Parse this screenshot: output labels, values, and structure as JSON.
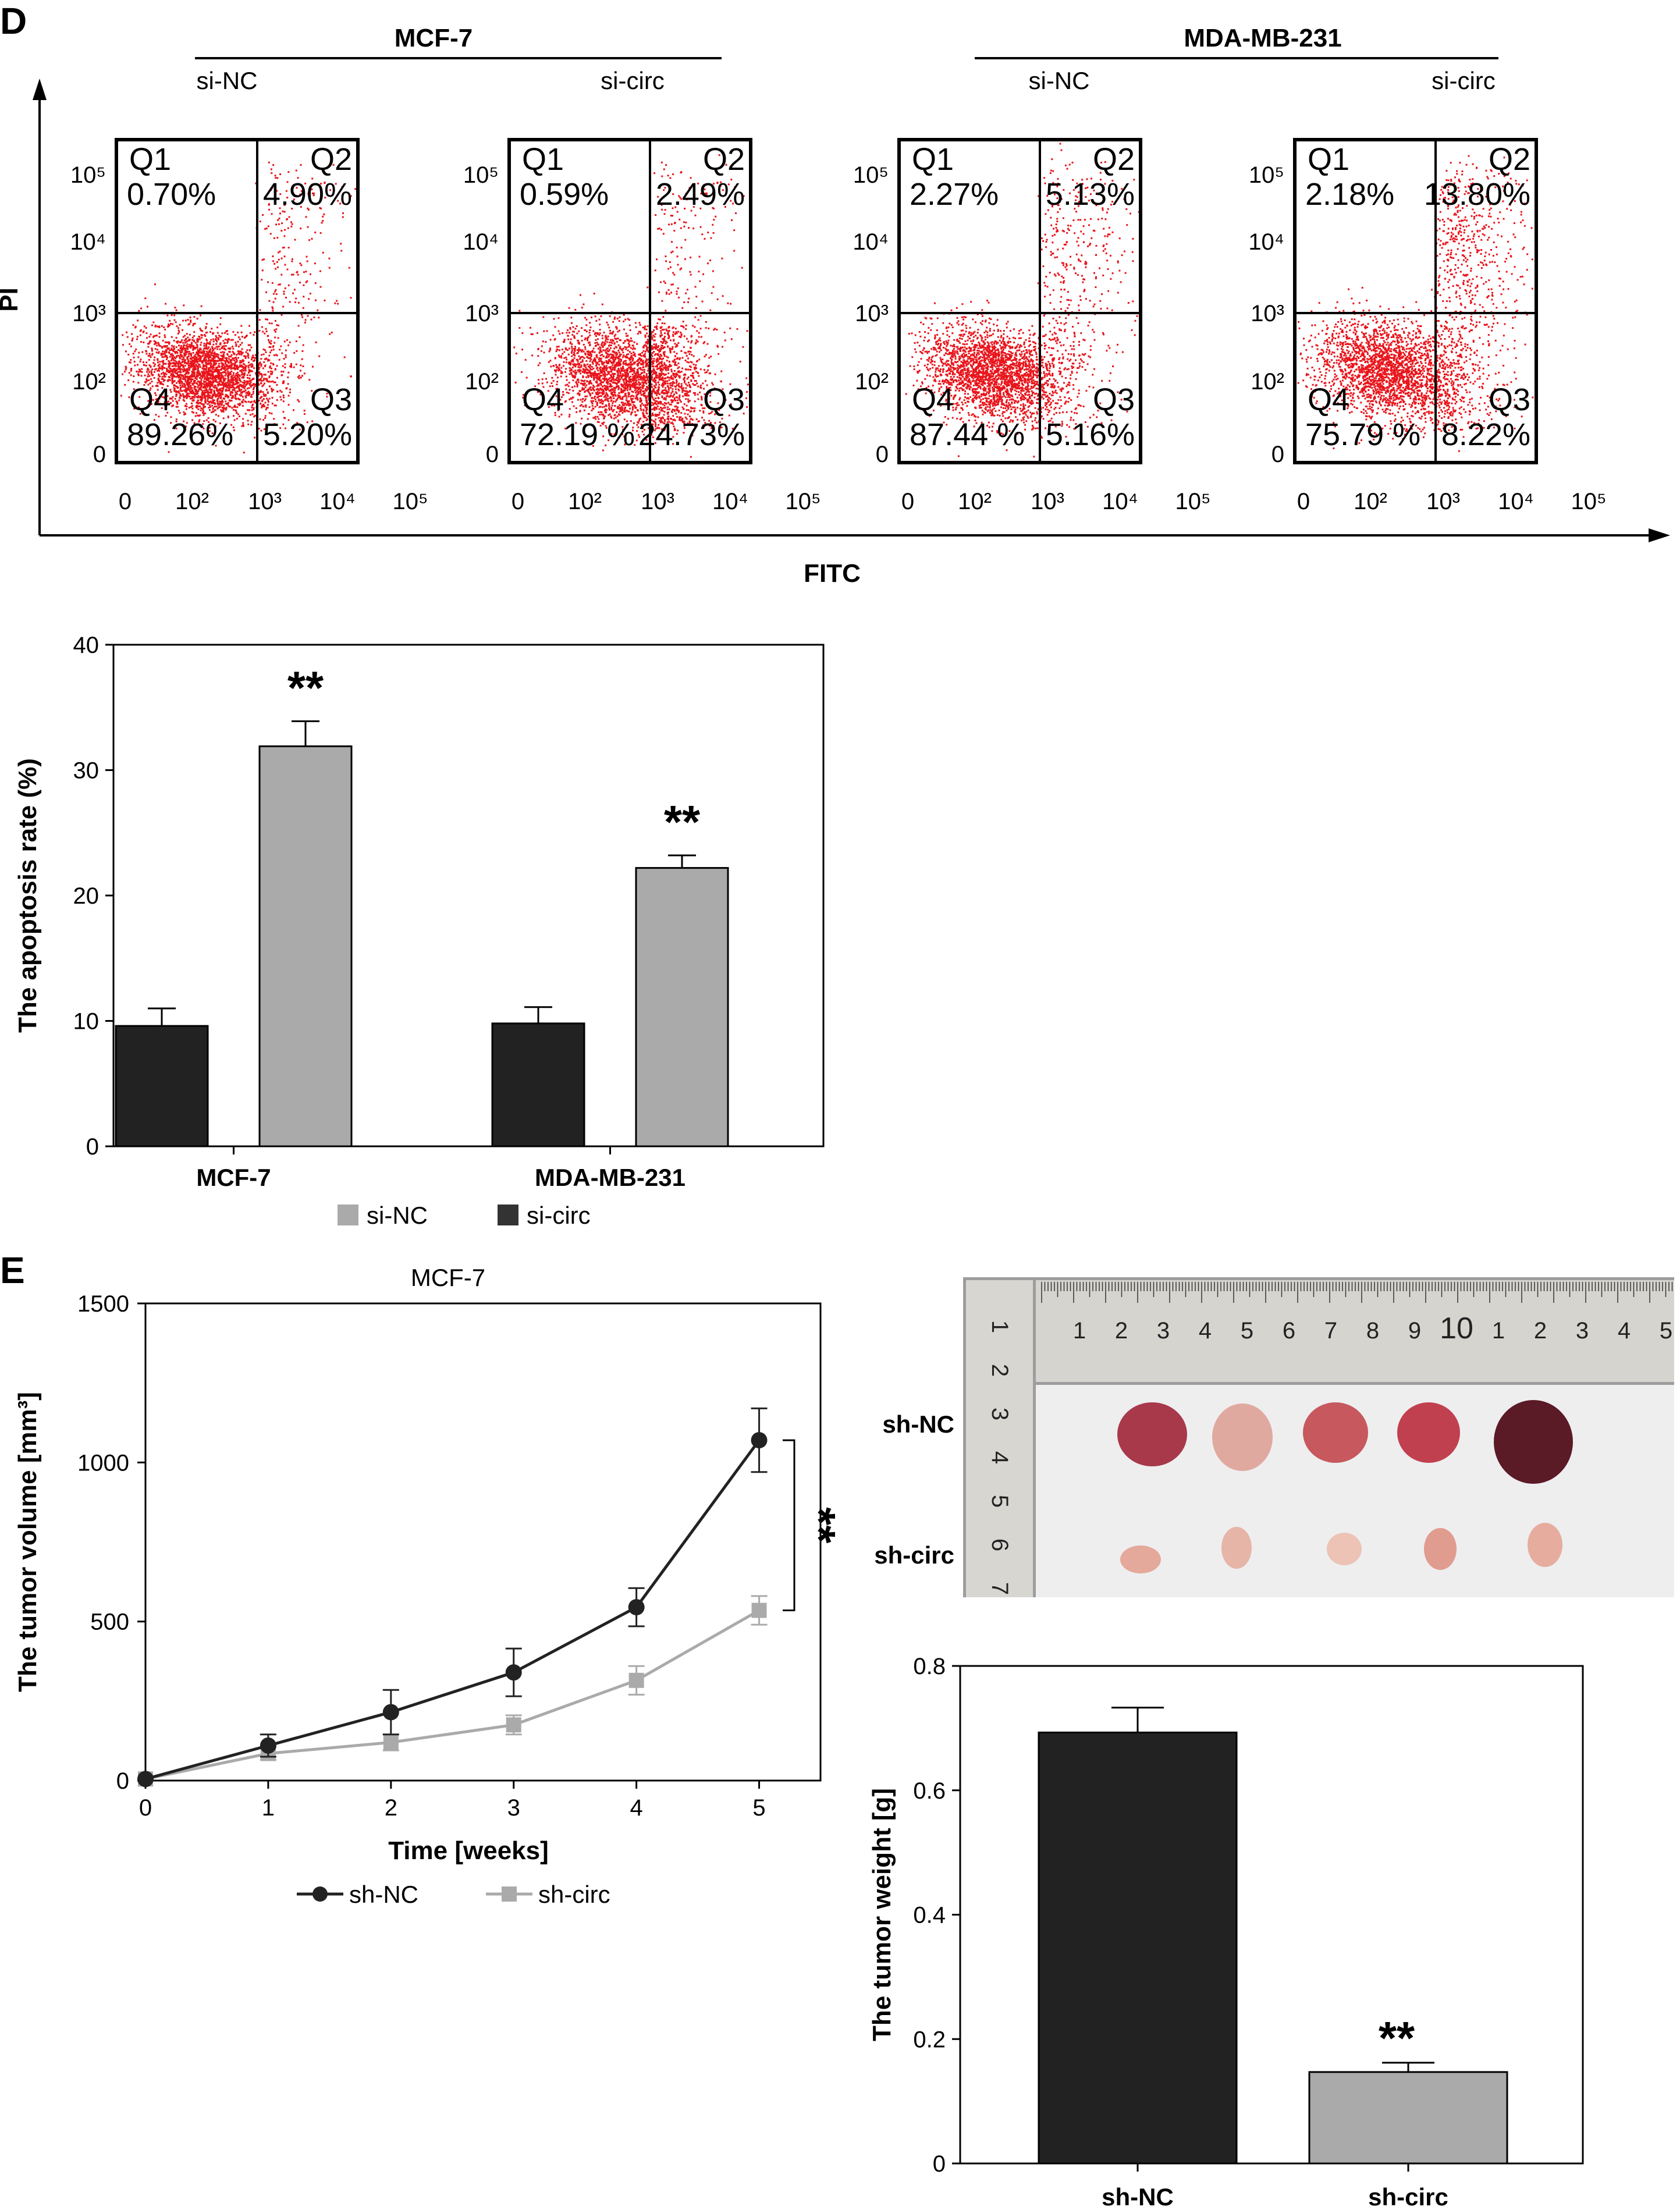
{
  "panel_d_label": "D",
  "panel_e_label": "E",
  "flow": {
    "groups": [
      {
        "name": "MCF-7",
        "conditions": [
          "si-NC",
          "si-circ"
        ]
      },
      {
        "name": "MDA-MB-231",
        "conditions": [
          "si-NC",
          "si-circ"
        ]
      }
    ],
    "x_axis_label": "FITC",
    "y_axis_label": "PI",
    "x_ticks": [
      "0",
      "10²",
      "10³",
      "10⁴",
      "10⁵"
    ],
    "y_ticks": [
      "10⁵",
      "10⁴",
      "10³",
      "10²",
      "0"
    ],
    "dot_color": "#e8141b",
    "plots": [
      {
        "Q1": "0.70%",
        "Q2": "4.90%",
        "Q3": "5.20%",
        "Q4": "89.26%"
      },
      {
        "Q1": "0.59%",
        "Q2": "2.49%",
        "Q3": "24.73%",
        "Q4": "72.19 %"
      },
      {
        "Q1": "2.27%",
        "Q2": "5.13%",
        "Q3": "5.16%",
        "Q4": "87.44 %"
      },
      {
        "Q1": "2.18%",
        "Q2": "13.80%",
        "Q3": "8.22%",
        "Q4": "75.79 %"
      }
    ],
    "quadrant_names": [
      "Q1",
      "Q2",
      "Q3",
      "Q4"
    ]
  },
  "chart_data": [
    {
      "type": "bar",
      "ylabel": "The apoptosis rate (%)",
      "ylim": [
        0,
        40
      ],
      "yticks": [
        0,
        10,
        20,
        30,
        40
      ],
      "categories": [
        "MCF-7",
        "MDA-MB-231"
      ],
      "series": [
        {
          "name": "si-circ",
          "color": "#222222",
          "values": [
            9.6,
            9.8
          ],
          "errors": [
            1.4,
            1.3
          ]
        },
        {
          "name": "si-NC",
          "color": "#aaaaaa",
          "values": [
            31.9,
            22.2
          ],
          "errors": [
            2.0,
            1.0
          ]
        }
      ],
      "significance": [
        "**",
        "**"
      ],
      "legend": [
        {
          "name": "si-NC",
          "color": "#aaaaaa"
        },
        {
          "name": "si-circ",
          "color": "#333333"
        }
      ]
    },
    {
      "type": "line",
      "title": "MCF-7",
      "xlabel": "Time [weeks]",
      "ylabel": "The tumor volume [mm³]",
      "x": [
        0,
        1,
        2,
        3,
        4,
        5
      ],
      "xlim": [
        0,
        5.5
      ],
      "ylim": [
        0,
        1500
      ],
      "yticks": [
        0,
        500,
        1000,
        1500
      ],
      "series": [
        {
          "name": "sh-NC",
          "color": "#222222",
          "marker": "circle",
          "values": [
            5,
            110,
            215,
            340,
            545,
            1070
          ],
          "errors": [
            0,
            35,
            70,
            75,
            60,
            100
          ]
        },
        {
          "name": "sh-circ",
          "color": "#aaaaaa",
          "marker": "square",
          "values": [
            5,
            85,
            120,
            175,
            315,
            535
          ],
          "errors": [
            0,
            20,
            25,
            30,
            45,
            45
          ]
        }
      ],
      "significance": "**"
    },
    {
      "type": "bar",
      "ylabel": "The tumor weight [g]",
      "ylim": [
        0,
        0.8
      ],
      "yticks": [
        "0",
        "0.2",
        "0.4",
        "0.6",
        "0.8"
      ],
      "categories": [
        "sh-NC",
        "sh-circ"
      ],
      "values": [
        0.693,
        0.147
      ],
      "errors": [
        0.04,
        0.015
      ],
      "colors": [
        "#222222",
        "#aaaaaa"
      ],
      "significance": [
        "",
        "**"
      ]
    }
  ],
  "photo": {
    "row_labels": [
      "sh-NC",
      "sh-circ"
    ],
    "ruler_numbers": [
      "1",
      "2",
      "3",
      "4",
      "5",
      "6",
      "7",
      "8",
      "9",
      "10",
      "1",
      "2",
      "3",
      "4",
      "5"
    ],
    "ruler_side_numbers": [
      "1",
      "2",
      "3",
      "4",
      "5",
      "6",
      "7"
    ]
  }
}
